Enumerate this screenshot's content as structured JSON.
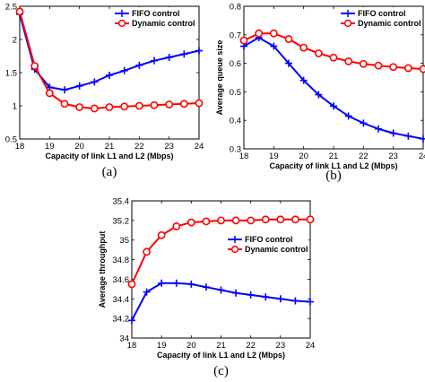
{
  "chart_data": [
    {
      "type": "line",
      "caption": "(a)",
      "xlabel": "Capacity of link L1 and L2 (Mbps)",
      "ylabel": "Packet loss (%)",
      "xlim": [
        18,
        24
      ],
      "ylim": [
        0.5,
        2.5
      ],
      "xticks": [
        "18",
        "19",
        "20",
        "21",
        "22",
        "23",
        "24"
      ],
      "yticks": [
        "0.5",
        "1",
        "1.5",
        "2",
        "2.5"
      ],
      "grid": false,
      "legend": "top-right",
      "series": [
        {
          "name": "FIFO control",
          "color": "#0000ff",
          "marker": "plus",
          "x": [
            18,
            18.5,
            19,
            19.5,
            20,
            20.5,
            21,
            21.5,
            22,
            22.5,
            23,
            23.5,
            24
          ],
          "y": [
            2.38,
            1.55,
            1.28,
            1.24,
            1.3,
            1.36,
            1.46,
            1.53,
            1.61,
            1.68,
            1.73,
            1.78,
            1.83
          ]
        },
        {
          "name": "Dynamic control",
          "color": "#ff0000",
          "marker": "circle",
          "x": [
            18,
            18.5,
            19,
            19.5,
            20,
            20.5,
            21,
            21.5,
            22,
            22.5,
            23,
            23.5,
            24
          ],
          "y": [
            2.42,
            1.6,
            1.19,
            1.03,
            0.98,
            0.96,
            0.98,
            0.99,
            1.0,
            1.01,
            1.02,
            1.03,
            1.04
          ]
        }
      ]
    },
    {
      "type": "line",
      "caption": "(b)",
      "xlabel": "Capacity of link L1 and L2 (Mbps)",
      "ylabel": "Average queue size",
      "xlim": [
        18,
        24
      ],
      "ylim": [
        0.3,
        0.8
      ],
      "xticks": [
        "18",
        "19",
        "20",
        "21",
        "22",
        "23",
        "24"
      ],
      "yticks": [
        "0.3",
        "0.4",
        "0.5",
        "0.6",
        "0.7",
        "0.8"
      ],
      "grid": false,
      "legend": "top-right",
      "series": [
        {
          "name": "FIFO control",
          "color": "#0000ff",
          "marker": "plus",
          "x": [
            18,
            18.5,
            19,
            19.5,
            20,
            20.5,
            21,
            21.5,
            22,
            22.5,
            23,
            23.5,
            24
          ],
          "y": [
            0.66,
            0.69,
            0.66,
            0.6,
            0.54,
            0.49,
            0.45,
            0.415,
            0.39,
            0.37,
            0.355,
            0.345,
            0.335
          ]
        },
        {
          "name": "Dynamic control",
          "color": "#ff0000",
          "marker": "circle",
          "x": [
            18,
            18.5,
            19,
            19.5,
            20,
            20.5,
            21,
            21.5,
            22,
            22.5,
            23,
            23.5,
            24
          ],
          "y": [
            0.68,
            0.705,
            0.705,
            0.685,
            0.655,
            0.635,
            0.62,
            0.607,
            0.598,
            0.592,
            0.587,
            0.583,
            0.58
          ]
        }
      ]
    },
    {
      "type": "line",
      "caption": "(c)",
      "xlabel": "Capacity of link L1 and L2 (Mbps)",
      "ylabel": "Average throughput",
      "xlim": [
        18,
        24
      ],
      "ylim": [
        34,
        35.4
      ],
      "xticks": [
        "18",
        "19",
        "20",
        "21",
        "22",
        "23",
        "24"
      ],
      "yticks": [
        "34",
        "34.2",
        "34.4",
        "34.6",
        "34.8",
        "35",
        "35.2",
        "35.4"
      ],
      "grid": false,
      "legend": "right",
      "series": [
        {
          "name": "FIFO control",
          "color": "#0000ff",
          "marker": "plus",
          "x": [
            18,
            18.5,
            19,
            19.5,
            20,
            20.5,
            21,
            21.5,
            22,
            22.5,
            23,
            23.5,
            24
          ],
          "y": [
            34.18,
            34.47,
            34.56,
            34.56,
            34.55,
            34.52,
            34.49,
            34.46,
            34.44,
            34.42,
            34.4,
            34.38,
            34.37
          ]
        },
        {
          "name": "Dynamic control",
          "color": "#ff0000",
          "marker": "circle",
          "x": [
            18,
            18.5,
            19,
            19.5,
            20,
            20.5,
            21,
            21.5,
            22,
            22.5,
            23,
            23.5,
            24
          ],
          "y": [
            34.55,
            34.88,
            35.05,
            35.14,
            35.18,
            35.19,
            35.2,
            35.2,
            35.2,
            35.21,
            35.21,
            35.21,
            35.21
          ]
        }
      ]
    }
  ]
}
